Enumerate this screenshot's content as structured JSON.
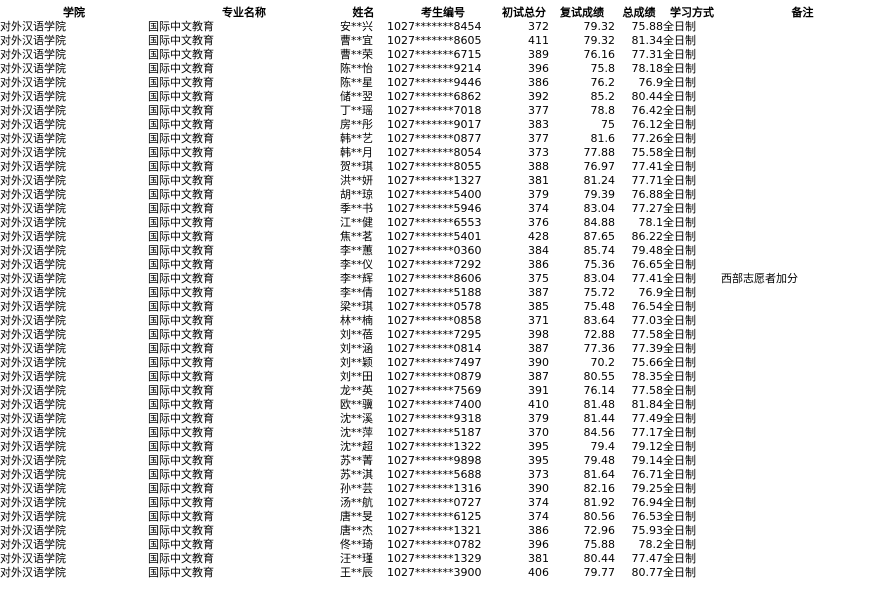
{
  "table": {
    "columns": [
      {
        "key": "college",
        "label": "学院"
      },
      {
        "key": "major",
        "label": "专业名称"
      },
      {
        "key": "name",
        "label": "姓名"
      },
      {
        "key": "exam_id",
        "label": "考生编号"
      },
      {
        "key": "initial_score",
        "label": "初试总分"
      },
      {
        "key": "retest_score",
        "label": "复试成绩"
      },
      {
        "key": "total_score",
        "label": "总成绩"
      },
      {
        "key": "study_mode",
        "label": "学习方式"
      },
      {
        "key": "remark",
        "label": "备注"
      }
    ],
    "rows": [
      [
        "对外汉语学院",
        "国际中文教育",
        "安**兴",
        "1027*******8454",
        "372",
        "79.32",
        "75.88",
        "全日制",
        ""
      ],
      [
        "对外汉语学院",
        "国际中文教育",
        "曹**宜",
        "1027*******8605",
        "411",
        "79.32",
        "81.34",
        "全日制",
        ""
      ],
      [
        "对外汉语学院",
        "国际中文教育",
        "曹**荣",
        "1027*******6715",
        "389",
        "76.16",
        "77.31",
        "全日制",
        ""
      ],
      [
        "对外汉语学院",
        "国际中文教育",
        "陈**怡",
        "1027*******9214",
        "396",
        "75.8",
        "78.18",
        "全日制",
        ""
      ],
      [
        "对外汉语学院",
        "国际中文教育",
        "陈**星",
        "1027*******9446",
        "386",
        "76.2",
        "76.9",
        "全日制",
        ""
      ],
      [
        "对外汉语学院",
        "国际中文教育",
        "储**翌",
        "1027*******6862",
        "392",
        "85.2",
        "80.44",
        "全日制",
        ""
      ],
      [
        "对外汉语学院",
        "国际中文教育",
        "丁**瑶",
        "1027*******7018",
        "377",
        "78.8",
        "76.42",
        "全日制",
        ""
      ],
      [
        "对外汉语学院",
        "国际中文教育",
        "房**彤",
        "1027*******9017",
        "383",
        "75",
        "76.12",
        "全日制",
        ""
      ],
      [
        "对外汉语学院",
        "国际中文教育",
        "韩**艺",
        "1027*******0877",
        "377",
        "81.6",
        "77.26",
        "全日制",
        ""
      ],
      [
        "对外汉语学院",
        "国际中文教育",
        "韩**月",
        "1027*******8054",
        "373",
        "77.88",
        "75.58",
        "全日制",
        ""
      ],
      [
        "对外汉语学院",
        "国际中文教育",
        "贺**琪",
        "1027*******8055",
        "388",
        "76.97",
        "77.41",
        "全日制",
        ""
      ],
      [
        "对外汉语学院",
        "国际中文教育",
        "洪**妍",
        "1027*******1327",
        "381",
        "81.24",
        "77.71",
        "全日制",
        ""
      ],
      [
        "对外汉语学院",
        "国际中文教育",
        "胡**琼",
        "1027*******5400",
        "379",
        "79.39",
        "76.88",
        "全日制",
        ""
      ],
      [
        "对外汉语学院",
        "国际中文教育",
        "季**书",
        "1027*******5946",
        "374",
        "83.04",
        "77.27",
        "全日制",
        ""
      ],
      [
        "对外汉语学院",
        "国际中文教育",
        "江**健",
        "1027*******6553",
        "376",
        "84.88",
        "78.1",
        "全日制",
        ""
      ],
      [
        "对外汉语学院",
        "国际中文教育",
        "焦**茗",
        "1027*******5401",
        "428",
        "87.65",
        "86.22",
        "全日制",
        ""
      ],
      [
        "对外汉语学院",
        "国际中文教育",
        "李**蕙",
        "1027*******0360",
        "384",
        "85.74",
        "79.48",
        "全日制",
        ""
      ],
      [
        "对外汉语学院",
        "国际中文教育",
        "李**仪",
        "1027*******7292",
        "386",
        "75.36",
        "76.65",
        "全日制",
        ""
      ],
      [
        "对外汉语学院",
        "国际中文教育",
        "李**辉",
        "1027*******8606",
        "375",
        "83.04",
        "77.41",
        "全日制",
        "西部志愿者加分"
      ],
      [
        "对外汉语学院",
        "国际中文教育",
        "李**倩",
        "1027*******5188",
        "387",
        "75.72",
        "76.9",
        "全日制",
        ""
      ],
      [
        "对外汉语学院",
        "国际中文教育",
        "梁**琪",
        "1027*******0578",
        "385",
        "75.48",
        "76.54",
        "全日制",
        ""
      ],
      [
        "对外汉语学院",
        "国际中文教育",
        "林**楠",
        "1027*******0858",
        "371",
        "83.64",
        "77.03",
        "全日制",
        ""
      ],
      [
        "对外汉语学院",
        "国际中文教育",
        "刘**蓓",
        "1027*******7295",
        "398",
        "72.88",
        "77.58",
        "全日制",
        ""
      ],
      [
        "对外汉语学院",
        "国际中文教育",
        "刘**涵",
        "1027*******0814",
        "387",
        "77.36",
        "77.39",
        "全日制",
        ""
      ],
      [
        "对外汉语学院",
        "国际中文教育",
        "刘**颖",
        "1027*******7497",
        "390",
        "70.2",
        "75.66",
        "全日制",
        ""
      ],
      [
        "对外汉语学院",
        "国际中文教育",
        "刘**田",
        "1027*******0879",
        "387",
        "80.55",
        "78.35",
        "全日制",
        ""
      ],
      [
        "对外汉语学院",
        "国际中文教育",
        "龙**英",
        "1027*******7569",
        "391",
        "76.14",
        "77.58",
        "全日制",
        ""
      ],
      [
        "对外汉语学院",
        "国际中文教育",
        "欧**骥",
        "1027*******7400",
        "410",
        "81.48",
        "81.84",
        "全日制",
        ""
      ],
      [
        "对外汉语学院",
        "国际中文教育",
        "沈**溪",
        "1027*******9318",
        "379",
        "81.44",
        "77.49",
        "全日制",
        ""
      ],
      [
        "对外汉语学院",
        "国际中文教育",
        "沈**萍",
        "1027*******5187",
        "370",
        "84.56",
        "77.17",
        "全日制",
        ""
      ],
      [
        "对外汉语学院",
        "国际中文教育",
        "沈**超",
        "1027*******1322",
        "395",
        "79.4",
        "79.12",
        "全日制",
        ""
      ],
      [
        "对外汉语学院",
        "国际中文教育",
        "苏**菁",
        "1027*******9898",
        "395",
        "79.48",
        "79.14",
        "全日制",
        ""
      ],
      [
        "对外汉语学院",
        "国际中文教育",
        "苏**淇",
        "1027*******5688",
        "373",
        "81.64",
        "76.71",
        "全日制",
        ""
      ],
      [
        "对外汉语学院",
        "国际中文教育",
        "孙**芸",
        "1027*******1316",
        "390",
        "82.16",
        "79.25",
        "全日制",
        ""
      ],
      [
        "对外汉语学院",
        "国际中文教育",
        "汤**航",
        "1027*******0727",
        "374",
        "81.92",
        "76.94",
        "全日制",
        ""
      ],
      [
        "对外汉语学院",
        "国际中文教育",
        "唐**旻",
        "1027*******6125",
        "374",
        "80.56",
        "76.53",
        "全日制",
        ""
      ],
      [
        "对外汉语学院",
        "国际中文教育",
        "唐**杰",
        "1027*******1321",
        "386",
        "72.96",
        "75.93",
        "全日制",
        ""
      ],
      [
        "对外汉语学院",
        "国际中文教育",
        "佟**琦",
        "1027*******0782",
        "396",
        "75.88",
        "78.2",
        "全日制",
        ""
      ],
      [
        "对外汉语学院",
        "国际中文教育",
        "汪**瑾",
        "1027*******1329",
        "381",
        "80.44",
        "77.47",
        "全日制",
        ""
      ],
      [
        "对外汉语学院",
        "国际中文教育",
        "王**辰",
        "1027*******3900",
        "406",
        "79.77",
        "80.77",
        "全日制",
        ""
      ]
    ],
    "text_color": "#000000",
    "background_color": "#ffffff"
  }
}
